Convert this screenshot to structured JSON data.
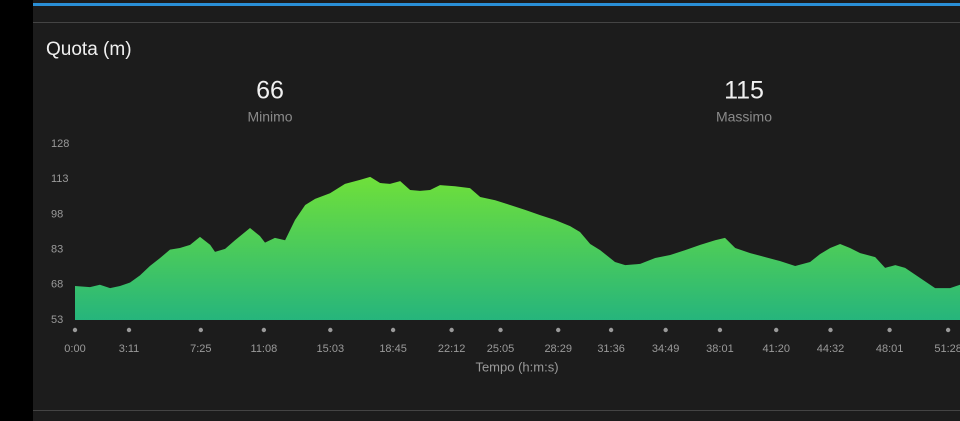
{
  "chart_data": {
    "type": "area",
    "title": "Quota (m)",
    "stats": [
      {
        "label": "Minimo",
        "value": 66
      },
      {
        "label": "Massimo",
        "value": 115
      }
    ],
    "xlabel": "Tempo (h:m:s)",
    "x": [
      0,
      53,
      88,
      124,
      159,
      195,
      230,
      265,
      301,
      336,
      371,
      407,
      442,
      478,
      495,
      531,
      566,
      619,
      654,
      672,
      707,
      743,
      778,
      814,
      849,
      902,
      955,
      1008,
      1044,
      1079,
      1114,
      1150,
      1185,
      1220,
      1256,
      1291,
      1344,
      1397,
      1433,
      1486,
      1539,
      1592,
      1645,
      1698,
      1751,
      1786,
      1822,
      1857,
      1910,
      1946,
      1999,
      2052,
      2105,
      2158,
      2211,
      2264,
      2299,
      2335,
      2388,
      2441,
      2494,
      2547,
      2600,
      2635,
      2671,
      2706,
      2741,
      2777,
      2830,
      2865,
      2901,
      2936,
      2989,
      3042,
      3095,
      3130
    ],
    "values": [
      67.5,
      67,
      68,
      66.6,
      67.5,
      69,
      72,
      76,
      79.4,
      83,
      83.7,
      85,
      88.4,
      85,
      82,
      83.3,
      87,
      92.2,
      88.8,
      86,
      88,
      87,
      95.6,
      102,
      104.6,
      107,
      111,
      112.7,
      114,
      111.4,
      111,
      112.2,
      108.4,
      108,
      108.4,
      110.5,
      110,
      109.2,
      105.4,
      104,
      102,
      99.9,
      97.7,
      95.6,
      93,
      90.5,
      85.4,
      82.8,
      77.7,
      76.4,
      76.9,
      79.4,
      80.7,
      82.8,
      85,
      87,
      88,
      83.7,
      81.5,
      79.8,
      78.1,
      76,
      77.7,
      81.1,
      83.7,
      85.4,
      83.7,
      81.5,
      79.8,
      75.2,
      76.4,
      75.2,
      70.9,
      66.6,
      66.6,
      68
    ],
    "colors": [
      "#6fe03a",
      "#26b57c"
    ],
    "xlim": [
      0,
      3130
    ],
    "ylim": [
      53,
      128
    ],
    "yticks": [
      53,
      68,
      83,
      98,
      113,
      128
    ],
    "xticks": [
      {
        "value": 0,
        "label": "0:00"
      },
      {
        "value": 191,
        "label": "3:11"
      },
      {
        "value": 445,
        "label": "7:25"
      },
      {
        "value": 668,
        "label": "11:08"
      },
      {
        "value": 903,
        "label": "15:03"
      },
      {
        "value": 1125,
        "label": "18:45"
      },
      {
        "value": 1332,
        "label": "22:12"
      },
      {
        "value": 1505,
        "label": "25:05"
      },
      {
        "value": 1709,
        "label": "28:29"
      },
      {
        "value": 1896,
        "label": "31:36"
      },
      {
        "value": 2089,
        "label": "34:49"
      },
      {
        "value": 2281,
        "label": "38:01"
      },
      {
        "value": 2480,
        "label": "41:20"
      },
      {
        "value": 2672,
        "label": "44:32"
      },
      {
        "value": 2881,
        "label": "48:01"
      },
      {
        "value": 3088,
        "label": "51:28"
      }
    ]
  }
}
